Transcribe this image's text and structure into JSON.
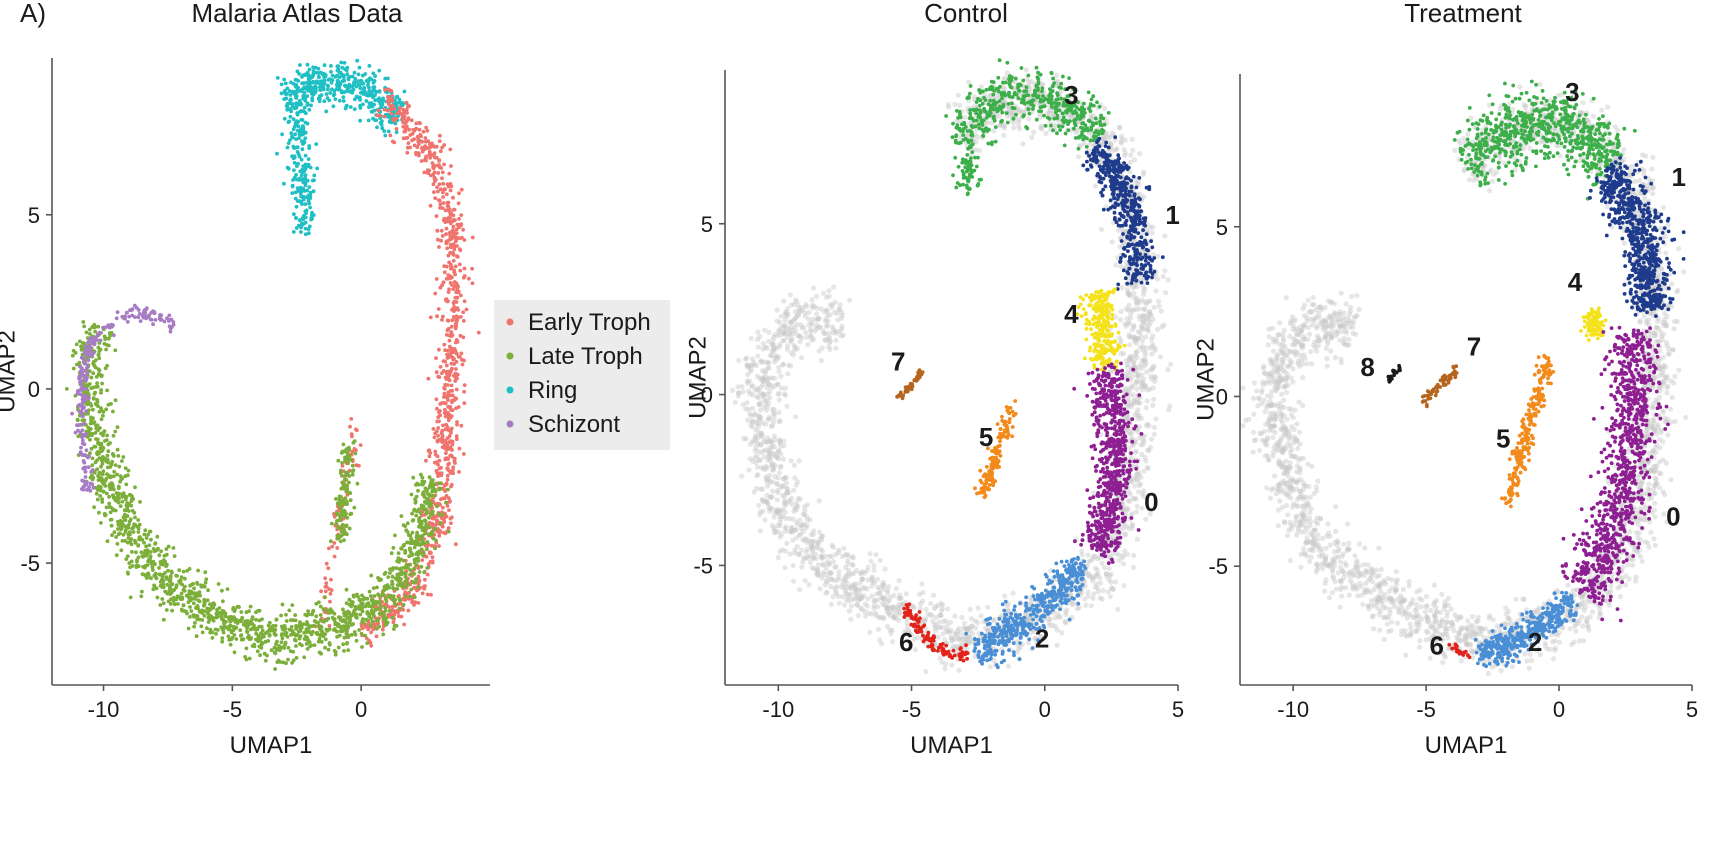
{
  "panel_label": "A)",
  "chart_data": [
    {
      "type": "scatter",
      "title": "Malaria Atlas Data",
      "xlabel": "UMAP1",
      "ylabel": "UMAP2",
      "xlim": [
        -12,
        5
      ],
      "ylim": [
        -8.5,
        9.5
      ],
      "xticks": [
        -10,
        -5,
        0
      ],
      "yticks": [
        -5,
        0,
        5
      ],
      "colors": {
        "Early Troph": "#f0746e",
        "Late Troph": "#7cae3a",
        "Ring": "#1fbfc4",
        "Schizont": "#a77cc5",
        "background": "#c8c8c8"
      },
      "legend": {
        "position": "right",
        "entries": [
          "Early Troph",
          "Late Troph",
          "Ring",
          "Schizont"
        ]
      },
      "regions": [
        {
          "name": "Ring",
          "path": [
            [
              -3.0,
              8.3
            ],
            [
              -1.5,
              8.9
            ],
            [
              -0.5,
              8.8
            ],
            [
              0.5,
              8.4
            ],
            [
              1.5,
              7.8
            ]
          ],
          "width": 0.6,
          "n": 420
        },
        {
          "name": "Ring",
          "path": [
            [
              -2.4,
              8.2
            ],
            [
              -2.4,
              6.5
            ],
            [
              -2.2,
              4.5
            ]
          ],
          "width": 0.45,
          "n": 200
        },
        {
          "name": "Early Troph",
          "path": [
            [
              0.8,
              8.2
            ],
            [
              2.0,
              7.5
            ],
            [
              3.0,
              6.4
            ],
            [
              3.6,
              4.5
            ],
            [
              3.6,
              2.5
            ],
            [
              3.4,
              0.0
            ],
            [
              3.2,
              -2.5
            ],
            [
              2.8,
              -4.5
            ],
            [
              1.6,
              -6.2
            ],
            [
              0.0,
              -7.0
            ]
          ],
          "width": 0.55,
          "n": 900
        },
        {
          "name": "Early Troph",
          "path": [
            [
              -0.2,
              -1.0
            ],
            [
              -0.8,
              -3.5
            ],
            [
              -1.5,
              -6.8
            ]
          ],
          "width": 0.3,
          "n": 80
        },
        {
          "name": "Late Troph",
          "path": [
            [
              2.7,
              -2.5
            ],
            [
              2.2,
              -4.5
            ],
            [
              1.0,
              -6.0
            ],
            [
              -1.0,
              -6.9
            ],
            [
              -3.5,
              -7.2
            ],
            [
              -5.5,
              -6.5
            ],
            [
              -7.5,
              -5.6
            ],
            [
              -9.0,
              -4.2
            ],
            [
              -10.1,
              -2.0
            ],
            [
              -10.6,
              0.5
            ],
            [
              -10.3,
              1.8
            ]
          ],
          "width": 0.7,
          "n": 1600
        },
        {
          "name": "Late Troph",
          "path": [
            [
              -0.5,
              -1.5
            ],
            [
              -0.8,
              -4.5
            ]
          ],
          "width": 0.35,
          "n": 120
        },
        {
          "name": "Schizont",
          "path": [
            [
              -10.6,
              -3.0
            ],
            [
              -10.9,
              -1.0
            ],
            [
              -10.8,
              0.8
            ],
            [
              -10.2,
              1.6
            ],
            [
              -9.0,
              2.2
            ],
            [
              -8.0,
              2.1
            ],
            [
              -7.2,
              1.8
            ]
          ],
          "width": 0.22,
          "n": 220
        }
      ]
    },
    {
      "type": "scatter",
      "title": "Control",
      "xlabel": "UMAP1",
      "ylabel": "UMAP2",
      "xlim": [
        -12,
        5
      ],
      "ylim": [
        -8.5,
        9.5
      ],
      "xticks": [
        -10,
        -5,
        0,
        5
      ],
      "yticks": [
        -5,
        0,
        5
      ],
      "colors": {
        "0": "#8e1f92",
        "1": "#1f3b8c",
        "2": "#4a8fd6",
        "3": "#3daf4a",
        "4": "#f4e21c",
        "5": "#f28a1c",
        "6": "#e2231a",
        "7": "#b5651d",
        "background": "#c8c8c8"
      },
      "clusters": [
        {
          "label": "3",
          "x": 1.0,
          "y": 8.5
        },
        {
          "label": "1",
          "x": 4.8,
          "y": 5.0
        },
        {
          "label": "4",
          "x": 1.0,
          "y": 2.1
        },
        {
          "label": "7",
          "x": -5.5,
          "y": 0.7
        },
        {
          "label": "5",
          "x": -2.2,
          "y": -1.5
        },
        {
          "label": "0",
          "x": 4.0,
          "y": -3.4
        },
        {
          "label": "6",
          "x": -5.2,
          "y": -7.5
        },
        {
          "label": "2",
          "x": -0.1,
          "y": -7.4
        }
      ],
      "regions": [
        {
          "name": "3",
          "path": [
            [
              -3.2,
              7.5
            ],
            [
              -2.0,
              8.5
            ],
            [
              -0.5,
              8.8
            ],
            [
              1.0,
              8.4
            ],
            [
              2.0,
              7.5
            ]
          ],
          "width": 0.8,
          "n": 450
        },
        {
          "name": "3",
          "path": [
            [
              -3.0,
              7.0
            ],
            [
              -2.8,
              6.0
            ]
          ],
          "width": 0.4,
          "n": 60
        },
        {
          "name": "1",
          "path": [
            [
              1.8,
              7.2
            ],
            [
              2.8,
              6.2
            ],
            [
              3.4,
              4.8
            ],
            [
              3.5,
              3.2
            ]
          ],
          "width": 0.6,
          "n": 450
        },
        {
          "name": "4",
          "path": [
            [
              2.0,
              3.0
            ],
            [
              2.2,
              1.8
            ],
            [
              2.3,
              0.8
            ]
          ],
          "width": 0.6,
          "n": 280
        },
        {
          "name": "0",
          "path": [
            [
              2.3,
              0.8
            ],
            [
              2.6,
              -1.0
            ],
            [
              2.6,
              -3.0
            ],
            [
              2.0,
              -4.6
            ]
          ],
          "width": 0.7,
          "n": 650
        },
        {
          "name": "2",
          "path": [
            [
              1.4,
              -5.0
            ],
            [
              0.0,
              -6.2
            ],
            [
              -1.5,
              -7.0
            ],
            [
              -2.6,
              -7.5
            ]
          ],
          "width": 0.6,
          "n": 450
        },
        {
          "name": "6",
          "path": [
            [
              -2.9,
              -7.6
            ],
            [
              -3.8,
              -7.5
            ],
            [
              -4.6,
              -7.0
            ],
            [
              -5.2,
              -6.2
            ]
          ],
          "width": 0.22,
          "n": 110
        },
        {
          "name": "5",
          "path": [
            [
              -1.2,
              -0.2
            ],
            [
              -1.7,
              -1.5
            ],
            [
              -2.3,
              -3.0
            ]
          ],
          "width": 0.25,
          "n": 140
        },
        {
          "name": "7",
          "path": [
            [
              -4.6,
              0.7
            ],
            [
              -5.1,
              0.2
            ],
            [
              -5.5,
              -0.1
            ]
          ],
          "width": 0.1,
          "n": 50
        }
      ],
      "background_path": [
        [
          -3.2,
          7.6
        ],
        [
          -1.5,
          8.7
        ],
        [
          0.5,
          8.6
        ],
        [
          2.2,
          7.5
        ],
        [
          3.3,
          5.5
        ],
        [
          3.6,
          3.0
        ],
        [
          3.5,
          0.0
        ],
        [
          3.1,
          -3.0
        ],
        [
          2.3,
          -4.8
        ],
        [
          1.0,
          -6.0
        ],
        [
          -1.0,
          -6.8
        ],
        [
          -3.0,
          -7.3
        ],
        [
          -5.0,
          -6.5
        ],
        [
          -7.5,
          -5.5
        ],
        [
          -9.5,
          -4.0
        ],
        [
          -10.6,
          -1.5
        ],
        [
          -10.8,
          0.5
        ],
        [
          -10.0,
          1.8
        ],
        [
          -8.8,
          2.3
        ],
        [
          -7.6,
          2.0
        ]
      ],
      "background_width": 0.85,
      "background_n": 2600
    },
    {
      "type": "scatter",
      "title": "Treatment",
      "xlabel": "UMAP1",
      "ylabel": "UMAP2",
      "xlim": [
        -12,
        5
      ],
      "ylim": [
        -8.5,
        9.5
      ],
      "xticks": [
        -10,
        -5,
        0,
        5
      ],
      "yticks": [
        -5,
        0,
        5
      ],
      "colors": {
        "0": "#8e1f92",
        "1": "#1f3b8c",
        "2": "#4a8fd6",
        "3": "#3daf4a",
        "4": "#f4e21c",
        "5": "#f28a1c",
        "6": "#e2231a",
        "7": "#b5651d",
        "8": "#1a1a1a",
        "background": "#c8c8c8"
      },
      "clusters": [
        {
          "label": "3",
          "x": 0.5,
          "y": 8.7
        },
        {
          "label": "1",
          "x": 4.5,
          "y": 6.2
        },
        {
          "label": "4",
          "x": 0.6,
          "y": 3.1
        },
        {
          "label": "7",
          "x": -3.2,
          "y": 1.2
        },
        {
          "label": "8",
          "x": -7.2,
          "y": 0.6
        },
        {
          "label": "5",
          "x": -2.1,
          "y": -1.5
        },
        {
          "label": "0",
          "x": 4.3,
          "y": -3.8
        },
        {
          "label": "6",
          "x": -4.6,
          "y": -7.6
        },
        {
          "label": "2",
          "x": -0.9,
          "y": -7.5
        }
      ],
      "regions": [
        {
          "name": "3",
          "path": [
            [
              -3.5,
              6.8
            ],
            [
              -2.0,
              7.8
            ],
            [
              -0.5,
              8.2
            ],
            [
              1.0,
              7.8
            ],
            [
              2.0,
              6.8
            ]
          ],
          "width": 1.0,
          "n": 650
        },
        {
          "name": "1",
          "path": [
            [
              1.8,
              6.6
            ],
            [
              2.8,
              5.6
            ],
            [
              3.3,
              4.2
            ],
            [
              3.4,
              2.5
            ]
          ],
          "width": 0.8,
          "n": 650
        },
        {
          "name": "4",
          "path": [
            [
              1.2,
              2.5
            ],
            [
              1.4,
              1.8
            ]
          ],
          "width": 0.4,
          "n": 80
        },
        {
          "name": "0",
          "path": [
            [
              2.8,
              2.0
            ],
            [
              2.8,
              0.0
            ],
            [
              2.5,
              -2.5
            ],
            [
              1.8,
              -4.5
            ],
            [
              0.8,
              -5.8
            ]
          ],
          "width": 0.95,
          "n": 900
        },
        {
          "name": "2",
          "path": [
            [
              0.5,
              -6.0
            ],
            [
              -0.8,
              -6.8
            ],
            [
              -2.0,
              -7.4
            ],
            [
              -3.0,
              -7.5
            ]
          ],
          "width": 0.45,
          "n": 380
        },
        {
          "name": "5",
          "path": [
            [
              -0.4,
              1.1
            ],
            [
              -1.1,
              -0.8
            ],
            [
              -1.6,
              -2.2
            ],
            [
              -1.9,
              -3.2
            ]
          ],
          "width": 0.3,
          "n": 220
        },
        {
          "name": "7",
          "path": [
            [
              -3.8,
              0.8
            ],
            [
              -4.4,
              0.4
            ],
            [
              -5.2,
              -0.2
            ]
          ],
          "width": 0.14,
          "n": 60
        },
        {
          "name": "8",
          "path": [
            [
              -6.0,
              0.8
            ],
            [
              -6.4,
              0.5
            ]
          ],
          "width": 0.1,
          "n": 18
        },
        {
          "name": "6",
          "path": [
            [
              -3.4,
              -7.6
            ],
            [
              -4.0,
              -7.4
            ]
          ],
          "width": 0.12,
          "n": 20
        }
      ],
      "background_path": [
        [
          -3.5,
          6.6
        ],
        [
          -1.5,
          8.1
        ],
        [
          0.5,
          8.1
        ],
        [
          2.2,
          7.0
        ],
        [
          3.3,
          5.0
        ],
        [
          3.6,
          2.5
        ],
        [
          3.5,
          0.0
        ],
        [
          3.1,
          -3.0
        ],
        [
          2.3,
          -4.8
        ],
        [
          1.0,
          -6.0
        ],
        [
          -1.0,
          -6.9
        ],
        [
          -3.0,
          -7.4
        ],
        [
          -5.0,
          -6.6
        ],
        [
          -7.5,
          -5.6
        ],
        [
          -9.5,
          -4.0
        ],
        [
          -10.5,
          -1.5
        ],
        [
          -10.8,
          0.5
        ],
        [
          -10.0,
          1.8
        ],
        [
          -8.8,
          2.2
        ],
        [
          -7.6,
          2.0
        ]
      ],
      "background_width": 0.85,
      "background_n": 2600
    }
  ]
}
